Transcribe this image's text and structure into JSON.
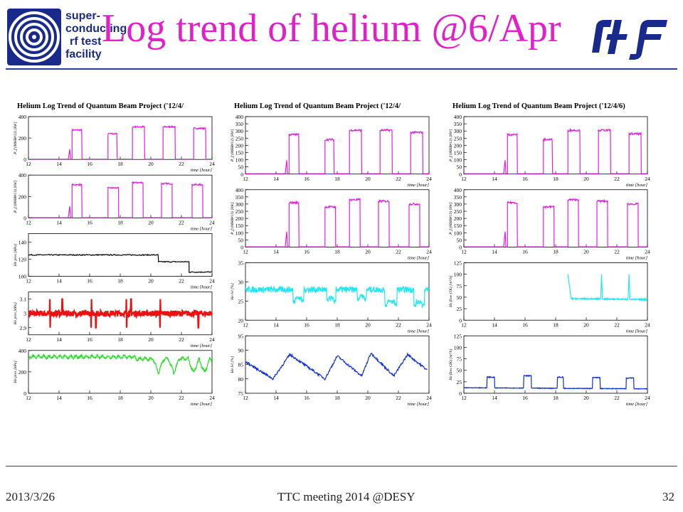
{
  "slide": {
    "title": "Log trend of helium @6/Apr",
    "logo_lines": [
      "super-",
      "conducting",
      "rf  test",
      "facility"
    ],
    "footer": {
      "date": "2013/3/26",
      "meeting": "TTC meeting 2014 @DESY",
      "page": "32"
    }
  },
  "colors": {
    "title": "#e020c8",
    "logo_blue": "#1a2a8a",
    "magenta": "#e020e0",
    "black": "#000000",
    "red": "#ee1010",
    "green": "#20e020",
    "cyan": "#20e8f0",
    "blue": "#1030d0"
  },
  "chart_data": [
    {
      "column": 0,
      "title": "Helium Log Trend of Quantum Beam Project ('12/4/",
      "panels": [
        {
          "type": "line",
          "ylabel": "P_f (MHB#12) [kW]",
          "ylim": [
            0,
            400
          ],
          "yticks": [
            0,
            200,
            400
          ],
          "xlim": [
            12,
            24
          ],
          "xticks": [
            12,
            14,
            16,
            18,
            20,
            22,
            24
          ],
          "xlabel": "time [hour]",
          "color": "magenta",
          "kind": "pulse",
          "segments": [
            [
              14.85,
              15.5,
              275
            ],
            [
              17.2,
              17.8,
              240
            ],
            [
              18.8,
              19.6,
              305
            ],
            [
              20.8,
              21.6,
              305
            ],
            [
              22.8,
              23.6,
              290
            ]
          ]
        },
        {
          "type": "line",
          "ylabel": "P_f (MHB#13) [kW]",
          "ylim": [
            0,
            400
          ],
          "yticks": [
            0,
            200,
            400
          ],
          "xlim": [
            12,
            24
          ],
          "xticks": [
            12,
            14,
            16,
            18,
            20,
            22,
            24
          ],
          "xlabel": "time [hour]",
          "color": "magenta",
          "kind": "pulse",
          "segments": [
            [
              14.85,
              15.5,
              310
            ],
            [
              17.2,
              17.9,
              280
            ],
            [
              18.8,
              19.5,
              330
            ],
            [
              20.7,
              21.4,
              320
            ],
            [
              22.7,
              23.4,
              310
            ]
          ]
        },
        {
          "type": "line",
          "ylabel": "He pres [kPa]",
          "ylim": [
            100,
            150
          ],
          "yticks": [
            100,
            120,
            140
          ],
          "xlim": [
            12,
            24
          ],
          "xticks": [
            12,
            14,
            16,
            18,
            20,
            22,
            24
          ],
          "xlabel": "time [hour]",
          "color": "black",
          "kind": "step",
          "steps": [
            [
              12,
              20.5,
              125
            ],
            [
              20.5,
              22.5,
              117
            ],
            [
              22.5,
              24,
              105
            ]
          ]
        },
        {
          "type": "line",
          "ylabel": "He pres [kPa]",
          "ylim": [
            2.85,
            3.15
          ],
          "yticks": [
            2.9,
            3,
            3.1
          ],
          "xlim": [
            12,
            24
          ],
          "xticks": [
            12,
            14,
            16,
            18,
            20,
            22,
            24
          ],
          "xlabel": "time [hour]",
          "color": "red",
          "kind": "noise",
          "base": 3.0,
          "spikes": [
            13.4,
            14.2,
            16.1,
            16.4,
            18.4,
            18.7,
            20.6,
            23.1
          ]
        },
        {
          "type": "line",
          "ylabel": "He pres [kPa]",
          "ylim": [
            0,
            400
          ],
          "yticks": [
            0,
            200,
            400
          ],
          "xlim": [
            12,
            24
          ],
          "xticks": [
            12,
            14,
            16,
            18,
            20,
            22,
            24
          ],
          "xlabel": "time [hour]",
          "color": "green",
          "kind": "wave",
          "base": 340,
          "dips": [
            20.5,
            21.5,
            22.8,
            23.5
          ]
        }
      ]
    },
    {
      "column": 1,
      "title": "Helium Log Trend of Quantum Beam Project ('12/4/",
      "panels": [
        {
          "type": "line",
          "ylabel": "P_f (MHB#12) [kW]",
          "ylim": [
            0,
            400
          ],
          "yticks": [
            0,
            50,
            100,
            150,
            200,
            250,
            300,
            350,
            400
          ],
          "xlim": [
            12,
            24
          ],
          "xticks": [
            12,
            14,
            16,
            18,
            20,
            22,
            24
          ],
          "xlabel": "time [hour]",
          "color": "magenta",
          "kind": "pulse",
          "segments": [
            [
              14.85,
              15.5,
              275
            ],
            [
              17.2,
              17.8,
              240
            ],
            [
              18.8,
              19.6,
              305
            ],
            [
              20.8,
              21.6,
              305
            ],
            [
              22.8,
              23.6,
              290
            ]
          ]
        },
        {
          "type": "line",
          "ylabel": "P_f (MHB#13) [kW]",
          "ylim": [
            0,
            400
          ],
          "yticks": [
            0,
            50,
            100,
            150,
            200,
            250,
            300,
            350,
            400
          ],
          "xlim": [
            12,
            24
          ],
          "xticks": [
            12,
            14,
            16,
            18,
            20,
            22,
            24
          ],
          "xlabel": "time [hour]",
          "color": "magenta",
          "kind": "pulse",
          "segments": [
            [
              14.85,
              15.5,
              310
            ],
            [
              17.2,
              17.9,
              280
            ],
            [
              18.8,
              19.5,
              330
            ],
            [
              20.7,
              21.4,
              320
            ],
            [
              22.7,
              23.4,
              300
            ]
          ]
        },
        {
          "type": "line",
          "ylabel": "He lvl [%]",
          "ylim": [
            20,
            35
          ],
          "yticks": [
            20,
            25,
            30,
            35
          ],
          "xlim": [
            12,
            24
          ],
          "xticks": [
            12,
            14,
            16,
            18,
            20,
            22,
            24
          ],
          "xlabel": "time [hour]",
          "color": "cyan",
          "kind": "plateau",
          "base": 28,
          "dips": [
            [
              15.1,
              15.8,
              25
            ],
            [
              17.3,
              17.9,
              25
            ],
            [
              19.3,
              19.9,
              25.5
            ],
            [
              21.1,
              21.9,
              24
            ],
            [
              23.0,
              23.7,
              24
            ]
          ]
        },
        {
          "type": "line",
          "ylabel": "He lvl [%]",
          "ylim": [
            75,
            95
          ],
          "yticks": [
            75,
            80,
            85,
            90,
            95
          ],
          "xlim": [
            12,
            24
          ],
          "xticks": [
            12,
            14,
            16,
            18,
            20,
            22,
            24
          ],
          "xlabel": "time [hour]",
          "color": "blue",
          "kind": "saw",
          "points": [
            [
              12,
              86
            ],
            [
              13.8,
              80
            ],
            [
              14.9,
              88.5
            ],
            [
              17.2,
              80
            ],
            [
              18.0,
              88
            ],
            [
              19.6,
              81
            ],
            [
              20.2,
              89
            ],
            [
              21.7,
              81
            ],
            [
              22.6,
              88.5
            ],
            [
              23.9,
              83
            ]
          ]
        }
      ]
    },
    {
      "column": 2,
      "title": "Helium Log Trend of Quantum Beam Project ('12/4/6)",
      "panels": [
        {
          "type": "line",
          "ylabel": "P_f (MHB#12) [kW]",
          "ylim": [
            0,
            400
          ],
          "yticks": [
            0,
            50,
            100,
            150,
            200,
            250,
            300,
            350,
            400
          ],
          "xlim": [
            12,
            24
          ],
          "xticks": [
            12,
            14,
            16,
            18,
            20,
            22,
            24
          ],
          "xlabel": "time [hour]",
          "color": "magenta",
          "kind": "pulse",
          "segments": [
            [
              14.85,
              15.5,
              275
            ],
            [
              17.2,
              17.8,
              240
            ],
            [
              18.8,
              19.6,
              305
            ],
            [
              20.8,
              21.6,
              305
            ],
            [
              22.8,
              23.6,
              280
            ]
          ]
        },
        {
          "type": "line",
          "ylabel": "P_f (MHB#13) [kW]",
          "ylim": [
            0,
            400
          ],
          "yticks": [
            0,
            50,
            100,
            150,
            200,
            250,
            300,
            350,
            400
          ],
          "xlim": [
            12,
            24
          ],
          "xticks": [
            12,
            14,
            16,
            18,
            20,
            22,
            24
          ],
          "xlabel": "time [hour]",
          "color": "magenta",
          "kind": "pulse",
          "segments": [
            [
              14.85,
              15.5,
              310
            ],
            [
              17.2,
              17.9,
              280
            ],
            [
              18.8,
              19.5,
              330
            ],
            [
              20.7,
              21.4,
              320
            ],
            [
              22.7,
              23.4,
              300
            ]
          ]
        },
        {
          "type": "line",
          "ylabel": "He flow (5K) [m³/h]",
          "ylim": [
            0,
            125
          ],
          "yticks": [
            0,
            25,
            50,
            75,
            100,
            125
          ],
          "xlim": [
            12,
            24
          ],
          "xticks": [
            12,
            14,
            16,
            18,
            20,
            22,
            24
          ],
          "xlabel": "time [hour]",
          "color": "cyan",
          "kind": "flow5k",
          "start": 18.8,
          "base": 47,
          "spikes": [
            [
              18.8,
              100
            ],
            [
              21.0,
              100
            ],
            [
              22.8,
              100
            ]
          ]
        },
        {
          "type": "line",
          "ylabel": "He flow (2K) [m³/h]",
          "ylim": [
            0,
            125
          ],
          "yticks": [
            0,
            25,
            50,
            75,
            100,
            125
          ],
          "xlim": [
            12,
            24
          ],
          "xticks": [
            12,
            14,
            16,
            18,
            20,
            22,
            24
          ],
          "xlabel": "time [hour]",
          "color": "blue",
          "kind": "flow2k",
          "base": 12,
          "bumps": [
            [
              13.5,
              14.0,
              35
            ],
            [
              15.9,
              16.4,
              38
            ],
            [
              18.1,
              18.5,
              35
            ],
            [
              20.4,
              20.9,
              34
            ],
            [
              22.6,
              23.1,
              33
            ]
          ]
        }
      ]
    }
  ]
}
